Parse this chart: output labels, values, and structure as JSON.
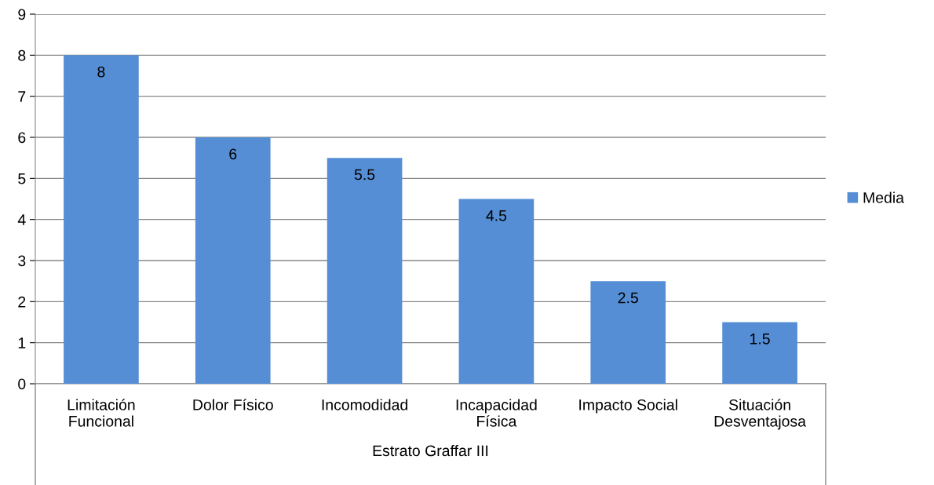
{
  "chart_data": {
    "type": "bar",
    "categories": [
      "Limitación\nFuncional",
      "Dolor Físico",
      "Incomodidad",
      "Incapacidad\nFísica",
      "Impacto Social",
      "Situación\nDesventajosa"
    ],
    "series": [
      {
        "name": "Media",
        "color": "#558ed5",
        "values": [
          8,
          6,
          5.5,
          4.5,
          2.5,
          1.5
        ]
      }
    ],
    "xlabel": "Estrato Graffar III",
    "ylim": [
      0,
      9
    ],
    "yticks": [
      0,
      1,
      2,
      3,
      4,
      5,
      6,
      7,
      8,
      9
    ],
    "grid": "y",
    "legend": "right",
    "data_labels": true
  }
}
